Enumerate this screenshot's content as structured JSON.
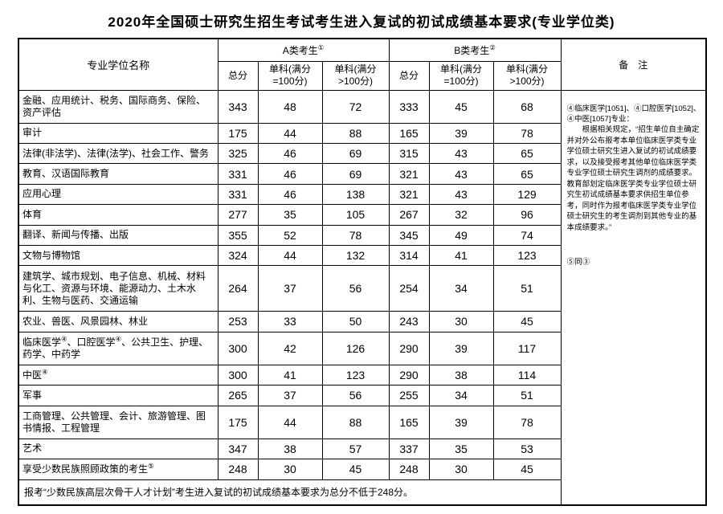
{
  "page": {
    "title": "2020年全国硕士研究生招生考试考生进入复试的初试成绩基本要求(专业学位类)"
  },
  "colors": {
    "background": "#ffffff",
    "text": "#000000",
    "border": "#000000"
  },
  "table": {
    "headers": {
      "major": "专业学位名称",
      "group_a": "A类考生①",
      "group_b": "B类考生②",
      "remark": "备　注",
      "total": "总分",
      "single_100": "单科(满分\n=100分)",
      "single_100_plus": "单科(满分\n>100分)"
    },
    "rows": [
      {
        "name": "金融、应用统计、税务、国际商务、保险、资产评估",
        "a_total": "343",
        "a_single100": "48",
        "a_single100plus": "72",
        "b_total": "333",
        "b_single100": "45",
        "b_single100plus": "68"
      },
      {
        "name": "审计",
        "a_total": "175",
        "a_single100": "44",
        "a_single100plus": "88",
        "b_total": "165",
        "b_single100": "39",
        "b_single100plus": "78"
      },
      {
        "name": "法律(非法学)、法律(法学)、社会工作、警务",
        "a_total": "325",
        "a_single100": "46",
        "a_single100plus": "69",
        "b_total": "315",
        "b_single100": "43",
        "b_single100plus": "65"
      },
      {
        "name": "教育、汉语国际教育",
        "a_total": "331",
        "a_single100": "46",
        "a_single100plus": "69",
        "b_total": "321",
        "b_single100": "43",
        "b_single100plus": "65"
      },
      {
        "name": "应用心理",
        "a_total": "331",
        "a_single100": "46",
        "a_single100plus": "138",
        "b_total": "321",
        "b_single100": "43",
        "b_single100plus": "129"
      },
      {
        "name": "体育",
        "a_total": "277",
        "a_single100": "35",
        "a_single100plus": "105",
        "b_total": "267",
        "b_single100": "32",
        "b_single100plus": "96"
      },
      {
        "name": "翻译、新闻与传播、出版",
        "a_total": "355",
        "a_single100": "52",
        "a_single100plus": "78",
        "b_total": "345",
        "b_single100": "49",
        "b_single100plus": "74"
      },
      {
        "name": "文物与博物馆",
        "a_total": "324",
        "a_single100": "44",
        "a_single100plus": "132",
        "b_total": "314",
        "b_single100": "41",
        "b_single100plus": "123"
      },
      {
        "name": "建筑学、城市规划、电子信息、机械、材料与化工、资源与环境、能源动力、土木水利、生物与医药、交通运输",
        "a_total": "264",
        "a_single100": "37",
        "a_single100plus": "56",
        "b_total": "254",
        "b_single100": "34",
        "b_single100plus": "51"
      },
      {
        "name": "农业、兽医、风景园林、林业",
        "a_total": "253",
        "a_single100": "33",
        "a_single100plus": "50",
        "b_total": "243",
        "b_single100": "30",
        "b_single100plus": "45"
      },
      {
        "name": "临床医学④、口腔医学④、公共卫生、护理、药学、中药学",
        "a_total": "300",
        "a_single100": "42",
        "a_single100plus": "126",
        "b_total": "290",
        "b_single100": "39",
        "b_single100plus": "117"
      },
      {
        "name": "中医④",
        "a_total": "300",
        "a_single100": "41",
        "a_single100plus": "123",
        "b_total": "290",
        "b_single100": "38",
        "b_single100plus": "114"
      },
      {
        "name": "军事",
        "a_total": "265",
        "a_single100": "37",
        "a_single100plus": "56",
        "b_total": "255",
        "b_single100": "34",
        "b_single100plus": "51"
      },
      {
        "name": "工商管理、公共管理、会计、旅游管理、图书情报、工程管理",
        "a_total": "175",
        "a_single100": "44",
        "a_single100plus": "88",
        "b_total": "165",
        "b_single100": "39",
        "b_single100plus": "78"
      },
      {
        "name": "艺术",
        "a_total": "347",
        "a_single100": "38",
        "a_single100plus": "57",
        "b_total": "337",
        "b_single100": "35",
        "b_single100plus": "53"
      },
      {
        "name": "享受少数民族照顾政策的考生⑤",
        "a_total": "248",
        "a_single100": "30",
        "a_single100plus": "45",
        "b_total": "248",
        "b_single100": "30",
        "b_single100plus": "45"
      }
    ],
    "footer_note": "报考“少数民族高层次骨干人才计划”考生进入复试的初试成绩基本要求为总分不低于248分。"
  },
  "remarks": {
    "note_title": "④临床医学[1051]、④口腔医学[1052]、④中医[1057]专业：",
    "note_body": "根据相关规定，“招生单位自主确定并对外公布报考本单位临床医学类专业学位硕士研究生进入复试的初试成绩要求，以及接受报考其他单位临床医学类专业学位硕士研究生调剂的成绩要求。教育部划定临床医学类专业学位硕士研究生初试成绩基本要求供招生单位参考，同时作为报考临床医学类专业学位硕士研究生的考生调剂到其他专业的基本成绩要求。”",
    "note_same": "⑤同③"
  }
}
